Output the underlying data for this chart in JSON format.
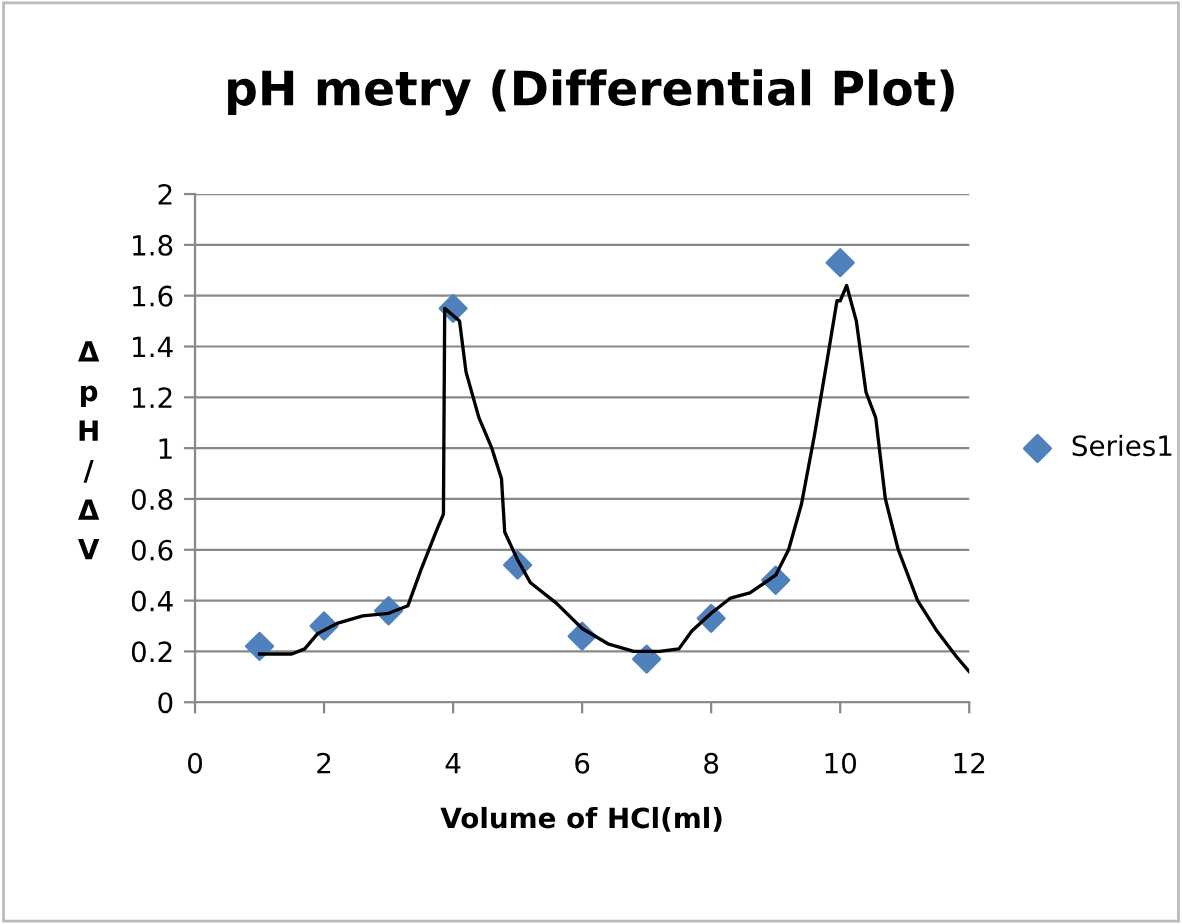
{
  "chart_data": {
    "type": "scatter",
    "title": "pH metry (Differential Plot)",
    "xlabel": "Volume of HCl(ml)",
    "ylabel": "ΔpH/ΔV",
    "xlim": [
      0,
      12
    ],
    "xticks": [
      0,
      2,
      4,
      6,
      8,
      10,
      12
    ],
    "ylim": [
      0,
      2
    ],
    "yticks": [
      0,
      0.2,
      0.4,
      0.6,
      0.8,
      1,
      1.2,
      1.4,
      1.6,
      1.8,
      2
    ],
    "grid": "y",
    "legend": "right",
    "marker": "diamond",
    "series": [
      {
        "name": "Series1",
        "color": "#4f81bd",
        "x": [
          1,
          2,
          3,
          4,
          5,
          6,
          7,
          8,
          9,
          10
        ],
        "values": [
          0.22,
          0.3,
          0.36,
          1.55,
          0.54,
          0.26,
          0.17,
          0.33,
          0.48,
          1.73
        ]
      },
      {
        "type": "line",
        "marker": "none",
        "color": "#000000",
        "x": [
          1,
          1.5,
          1.7,
          1.9,
          2.2,
          2.6,
          3.0,
          3.3,
          3.5,
          3.75,
          3.85,
          3.87,
          4.1,
          4.2,
          4.4,
          4.6,
          4.75,
          4.8,
          5.0,
          5.2,
          5.6,
          6.0,
          6.4,
          6.8,
          7.2,
          7.5,
          7.7,
          8.0,
          8.3,
          8.6,
          9.0,
          9.2,
          9.4,
          9.6,
          9.8,
          9.95,
          10.0,
          10.1,
          10.25,
          10.4,
          10.55,
          10.7,
          10.9,
          11.2,
          11.5,
          11.8,
          12
        ],
        "values": [
          0.19,
          0.19,
          0.21,
          0.27,
          0.31,
          0.34,
          0.35,
          0.38,
          0.52,
          0.68,
          0.74,
          1.55,
          1.5,
          1.3,
          1.12,
          1.0,
          0.88,
          0.67,
          0.56,
          0.47,
          0.39,
          0.29,
          0.23,
          0.2,
          0.2,
          0.21,
          0.28,
          0.35,
          0.41,
          0.43,
          0.5,
          0.6,
          0.78,
          1.05,
          1.35,
          1.58,
          1.58,
          1.64,
          1.5,
          1.22,
          1.12,
          0.8,
          0.6,
          0.4,
          0.28,
          0.18,
          0.12
        ]
      }
    ]
  }
}
